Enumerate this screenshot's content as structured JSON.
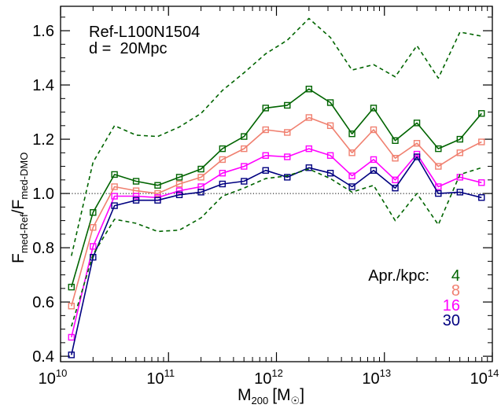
{
  "chart_data": {
    "type": "line",
    "title": "",
    "annotations": [
      "Ref-L100N1504",
      "d =  20Mpc"
    ],
    "xlabel": {
      "main": "M",
      "sub": "200",
      "unit": "[M",
      "sun": "☉",
      "close": "]"
    },
    "ylabel": {
      "main1": "F",
      "sub1": "med-Ref",
      "slash": "/F",
      "sub2": "med-DMO"
    },
    "x_scale": "log",
    "xlim": [
      10000000000.0,
      100000000000000.0
    ],
    "ylim": [
      0.38,
      1.69
    ],
    "x_ticks": [
      {
        "value": 10000000000.0,
        "base": "10",
        "exp": "10"
      },
      {
        "value": 100000000000.0,
        "base": "10",
        "exp": "11"
      },
      {
        "value": 1000000000000.0,
        "base": "10",
        "exp": "12"
      },
      {
        "value": 10000000000000.0,
        "base": "10",
        "exp": "13"
      },
      {
        "value": 100000000000000.0,
        "base": "10",
        "exp": "14"
      }
    ],
    "y_ticks": [
      "0.4",
      "0.6",
      "0.8",
      "1.0",
      "1.2",
      "1.4",
      "1.6"
    ],
    "reference_line": {
      "y": 1.0,
      "style": "dotted"
    },
    "legend": {
      "position": "right",
      "title": "Apr./kpc:",
      "entries": [
        "4",
        "8",
        "16",
        "30"
      ]
    },
    "x": [
      12600000000.0,
      20000000000.0,
      31600000000.0,
      50100000000.0,
      79400000000.0,
      126000000000.0,
      200000000000.0,
      316000000000.0,
      501000000000.0,
      794000000000.0,
      1260000000000.0,
      2000000000000.0,
      3160000000000.0,
      5010000000000.0,
      7940000000000.0,
      12600000000000.0,
      20000000000000.0,
      31600000000000.0,
      50100000000000.0,
      79400000000000.0
    ],
    "series": [
      {
        "name": "4",
        "color": "#006400",
        "marker": "square",
        "values": [
          0.655,
          0.93,
          1.07,
          1.045,
          1.03,
          1.06,
          1.09,
          1.165,
          1.21,
          1.315,
          1.325,
          1.385,
          1.335,
          1.22,
          1.315,
          1.195,
          1.26,
          1.165,
          1.2,
          1.295
        ]
      },
      {
        "name": "8",
        "color": "#f08070",
        "marker": "square",
        "values": [
          0.585,
          0.875,
          1.025,
          1.01,
          1.0,
          1.035,
          1.06,
          1.125,
          1.165,
          1.235,
          1.225,
          1.28,
          1.25,
          1.15,
          1.235,
          1.13,
          1.185,
          1.1,
          1.15,
          1.19
        ]
      },
      {
        "name": "16",
        "color": "#ff00ff",
        "marker": "square",
        "values": [
          0.47,
          0.805,
          0.99,
          0.99,
          0.985,
          1.01,
          1.025,
          1.075,
          1.1,
          1.14,
          1.135,
          1.165,
          1.14,
          1.065,
          1.125,
          1.05,
          1.145,
          1.025,
          1.06,
          1.04
        ]
      },
      {
        "name": "30",
        "color": "#000080",
        "marker": "square",
        "values": [
          0.405,
          0.765,
          0.955,
          0.975,
          0.975,
          0.995,
          1.005,
          1.035,
          1.045,
          1.085,
          1.06,
          1.095,
          1.075,
          1.025,
          1.085,
          1.02,
          1.135,
          1.0,
          1.005,
          0.985
        ]
      },
      {
        "color": "#006400",
        "style": "dashed",
        "values": [
          0.77,
          1.115,
          1.25,
          1.215,
          1.21,
          1.245,
          1.295,
          1.38,
          1.445,
          1.515,
          1.565,
          1.645,
          1.575,
          1.455,
          1.475,
          1.43,
          1.545,
          1.425,
          1.595,
          1.58
        ]
      },
      {
        "color": "#006400",
        "style": "dashed",
        "values": [
          0.51,
          0.775,
          0.905,
          0.89,
          0.86,
          0.865,
          0.91,
          0.99,
          1.02,
          1.055,
          1.065,
          1.09,
          1.055,
          1.005,
          1.03,
          0.9,
          1.0,
          0.885,
          1.07,
          1.095
        ]
      }
    ]
  }
}
